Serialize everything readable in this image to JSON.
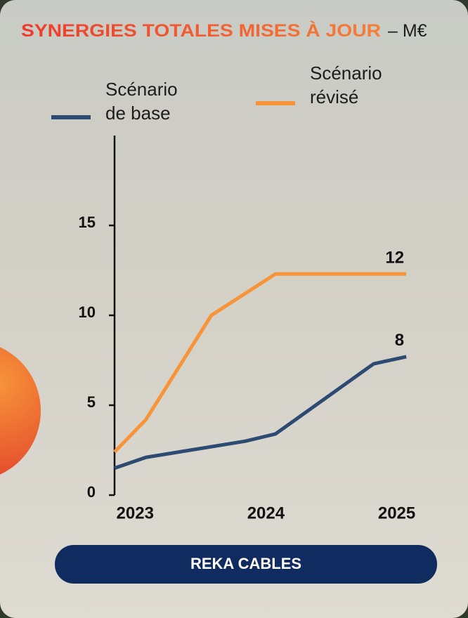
{
  "chart_data": {
    "type": "line",
    "title": "SYNERGIES TOTALES MISES À JOUR",
    "subtitle": "– M€",
    "xlim": [
      2022.8,
      2025.04
    ],
    "xticks": [
      2023,
      2024,
      2025
    ],
    "ylim": [
      0,
      20
    ],
    "yticks": [
      0,
      5,
      10,
      15
    ],
    "series": [
      {
        "name": "Scénario de base",
        "color": "#2c4a72",
        "x": [
          2022.8,
          2023.04,
          2023.8,
          2024.03,
          2024.78,
          2025.03
        ],
        "values": [
          1.5,
          2.1,
          3.0,
          3.4,
          7.3,
          7.7
        ],
        "value_labels": [
          null,
          null,
          null,
          null,
          null,
          "8"
        ]
      },
      {
        "name": "Scénario révisé",
        "color": "#f7943a",
        "x": [
          2022.8,
          2023.04,
          2023.54,
          2024.03,
          2025.03
        ],
        "values": [
          2.4,
          4.2,
          10,
          12.3,
          12.3
        ],
        "value_labels": [
          null,
          null,
          null,
          null,
          "12"
        ]
      }
    ]
  },
  "footer_button": "REKA CABLES"
}
